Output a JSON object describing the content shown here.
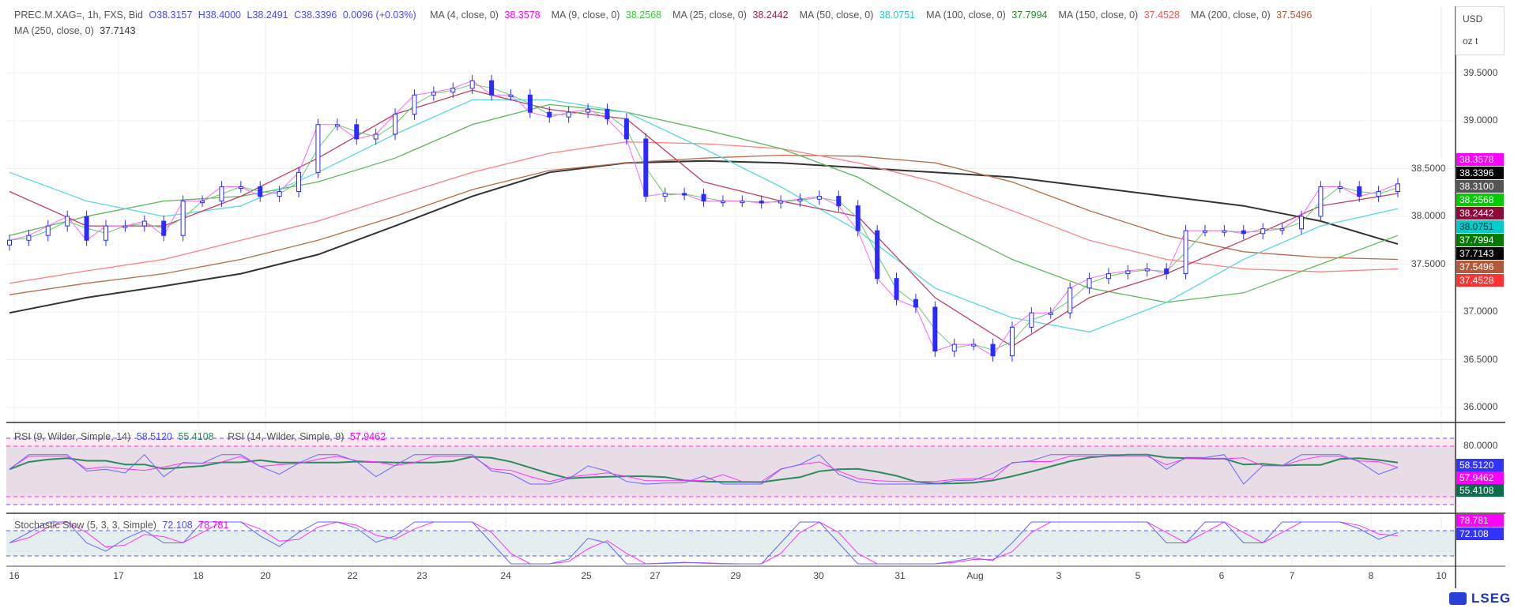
{
  "header": {
    "symbol": "PREC.M.XAG=, 1h, FXS, Bid",
    "open": "O38.3157",
    "high": "H38.4000",
    "low": "L38.2491",
    "close": "C38.3396",
    "change": "0.0096 (+0.03%)",
    "ma_legend": [
      {
        "label": "MA (4, close, 0)",
        "value": "38.3578",
        "color": "#ff00ff"
      },
      {
        "label": "MA (9, close, 0)",
        "value": "38.2568",
        "color": "#33cc33"
      },
      {
        "label": "MA (25, close, 0)",
        "value": "38.2442",
        "color": "#a0204a"
      },
      {
        "label": "MA (50, close, 0)",
        "value": "38.0751",
        "color": "#22cccc"
      },
      {
        "label": "MA (100, close, 0)",
        "value": "37.7994",
        "color": "#2a8a2a"
      },
      {
        "label": "MA (150, close, 0)",
        "value": "37.4528",
        "color": "#ff5555"
      },
      {
        "label": "MA (200, close, 0)",
        "value": "37.5496",
        "color": "#b05a3a"
      },
      {
        "label": "MA (250, close, 0)",
        "value": "37.7143",
        "color": "#333333"
      }
    ]
  },
  "axis": {
    "currency": "USD",
    "unit": "oz t",
    "price_ticks": [
      "39.5000",
      "39.0000",
      "38.5000",
      "38.0000",
      "37.5000",
      "37.0000",
      "36.5000",
      "36.0000"
    ],
    "rsi_tick": "80.0000"
  },
  "price_tags": [
    {
      "value": "38.3578",
      "bg": "#ff00ff",
      "fg": "#ffffff"
    },
    {
      "value": "38.3396",
      "bg": "#000000",
      "fg": "#ffffff"
    },
    {
      "value": "38.3100",
      "bg": "#555555",
      "fg": "#ffffff"
    },
    {
      "value": "38.2568",
      "bg": "#00cc00",
      "fg": "#ffffff"
    },
    {
      "value": "38.2442",
      "bg": "#8b0a3a",
      "fg": "#ffffff"
    },
    {
      "value": "38.0751",
      "bg": "#00cccc",
      "fg": "#003333"
    },
    {
      "value": "37.7994",
      "bg": "#007a00",
      "fg": "#ffffff"
    },
    {
      "value": "37.7143",
      "bg": "#000000",
      "fg": "#ffffff"
    },
    {
      "value": "37.5496",
      "bg": "#b05a3a",
      "fg": "#ffffff"
    },
    {
      "value": "37.4528",
      "bg": "#ff3333",
      "fg": "#ffffff"
    }
  ],
  "rsi": {
    "label1": "RSI (9, Wilder, Simple, 14)",
    "v1": "58.5120",
    "v1b": "55.4108",
    "label2": "RSI (14, Wilder, Simple, 9)",
    "v2": "57.9462",
    "tags": [
      {
        "value": "58.5120",
        "bg": "#3333ff"
      },
      {
        "value": "57.9462",
        "bg": "#ff00ff"
      },
      {
        "value": "55.4108",
        "bg": "#0a6e4a"
      }
    ],
    "levels": [
      80,
      20
    ]
  },
  "stoch": {
    "label": "Stochastic Slow (5, 3, 3, Simple)",
    "k": "72.108",
    "d": "78.781",
    "tags": [
      {
        "value": "78.781",
        "bg": "#ff00ff"
      },
      {
        "value": "72.108",
        "bg": "#3333ff"
      }
    ],
    "levels": [
      80,
      20
    ]
  },
  "x_labels": [
    "16",
    "17",
    "18",
    "20",
    "22",
    "23",
    "24",
    "25",
    "27",
    "29",
    "30",
    "31",
    "Aug",
    "3",
    "5",
    "6",
    "7",
    "8",
    "10"
  ],
  "logo": "LSEG",
  "chart_data": {
    "type": "candlestick",
    "ylim": [
      35.85,
      39.95
    ],
    "closes": [
      37.75,
      37.8,
      37.9,
      38.0,
      37.75,
      37.9,
      37.9,
      37.95,
      37.8,
      38.16,
      38.16,
      38.31,
      38.31,
      38.21,
      38.26,
      38.46,
      38.96,
      38.96,
      38.81,
      38.86,
      39.07,
      39.27,
      39.3,
      39.34,
      39.42,
      39.27,
      39.27,
      39.09,
      39.04,
      39.09,
      39.12,
      39.02,
      38.81,
      38.21,
      38.24,
      38.23,
      38.16,
      38.16,
      38.16,
      38.14,
      38.16,
      38.18,
      38.21,
      38.11,
      37.85,
      37.35,
      37.13,
      37.05,
      36.59,
      36.66,
      36.66,
      36.54,
      36.84,
      36.99,
      36.99,
      37.25,
      37.35,
      37.4,
      37.43,
      37.45,
      37.4,
      37.85,
      37.85,
      37.85,
      37.82,
      37.87,
      37.87,
      38.0,
      38.31,
      38.31,
      38.21,
      38.26,
      38.34
    ],
    "ma_series": [
      {
        "name": "MA (25, close, 0)",
        "color": "#c04060",
        "values": [
          38.26,
          37.9,
          37.9,
          38.21,
          38.61,
          39.07,
          39.32,
          39.12,
          39.02,
          38.36,
          38.16,
          38.0,
          37.15,
          36.64,
          37.15,
          37.4,
          37.75,
          38.11,
          38.24
        ]
      },
      {
        "name": "MA (50, close, 0)",
        "color": "#5ad8e0",
        "values": [
          38.46,
          38.16,
          38.0,
          38.11,
          38.46,
          38.86,
          39.22,
          39.22,
          39.09,
          38.71,
          38.31,
          37.85,
          37.25,
          36.94,
          36.79,
          37.1,
          37.55,
          37.9,
          38.08
        ]
      },
      {
        "name": "MA (100, close, 0)",
        "color": "#5cb85c",
        "values": [
          37.8,
          38.0,
          38.16,
          38.21,
          38.36,
          38.61,
          38.96,
          39.17,
          39.09,
          38.91,
          38.71,
          38.41,
          37.95,
          37.55,
          37.25,
          37.1,
          37.2,
          37.5,
          37.8
        ]
      },
      {
        "name": "MA (150, close, 0)",
        "color": "#ff8080",
        "values": [
          37.3,
          37.43,
          37.55,
          37.75,
          37.95,
          38.21,
          38.46,
          38.66,
          38.78,
          38.76,
          38.71,
          38.56,
          38.36,
          38.06,
          37.75,
          37.55,
          37.45,
          37.42,
          37.45
        ]
      },
      {
        "name": "MA (200, close, 0)",
        "color": "#b86a4a",
        "values": [
          37.18,
          37.3,
          37.4,
          37.55,
          37.75,
          38.0,
          38.28,
          38.48,
          38.56,
          38.61,
          38.64,
          38.63,
          38.56,
          38.36,
          38.06,
          37.8,
          37.63,
          37.57,
          37.55
        ]
      },
      {
        "name": "MA (250, close, 0)",
        "color": "#333333",
        "values": [
          36.99,
          37.15,
          37.27,
          37.4,
          37.6,
          37.9,
          38.21,
          38.46,
          38.56,
          38.58,
          38.56,
          38.51,
          38.46,
          38.41,
          38.31,
          38.21,
          38.11,
          37.95,
          37.71
        ]
      }
    ]
  }
}
